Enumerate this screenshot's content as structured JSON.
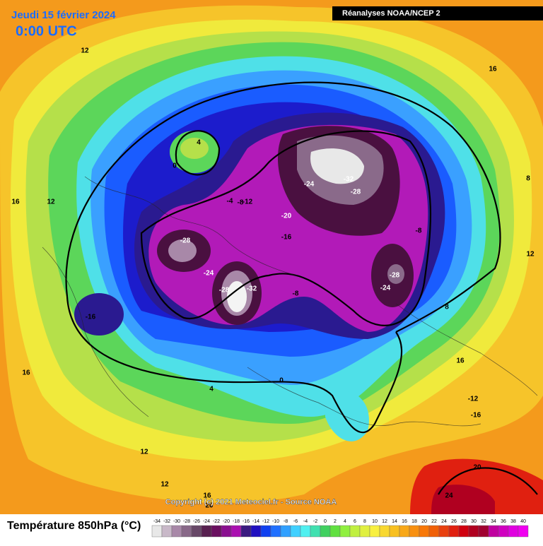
{
  "header": {
    "title": "Jeudi 15 février 2024",
    "time": "0:00 UTC",
    "source_box": "Réanalyses NOAA/NCEP 2"
  },
  "map": {
    "contour_labels": [
      12,
      16,
      4,
      0,
      16,
      12,
      -4,
      -8,
      -12,
      -24,
      -32,
      -28,
      -20,
      -16,
      -8,
      -28,
      -24,
      -28,
      -32,
      -8,
      -28,
      -24,
      8,
      12,
      8,
      -16,
      16,
      16,
      4,
      0,
      -12,
      -16,
      20,
      24,
      12,
      12,
      16,
      20
    ]
  },
  "footer": {
    "copyright": "Copyright (c) 2021 Meteociel.fr - Source NOAA",
    "variable": "Température 850hPa (°C)"
  },
  "legend": {
    "values": [
      -34,
      -32,
      -30,
      -28,
      -26,
      -24,
      -22,
      -20,
      -18,
      -16,
      -14,
      -12,
      -10,
      -8,
      -6,
      -4,
      -2,
      0,
      2,
      4,
      6,
      8,
      10,
      12,
      14,
      16,
      18,
      20,
      22,
      24,
      26,
      28,
      30,
      32,
      34,
      36,
      38,
      40
    ],
    "colors": [
      "#e8e8e8",
      "#c8b8c8",
      "#a888a8",
      "#886888",
      "#684868",
      "#582050",
      "#6a1060",
      "#8a1090",
      "#aa10b0",
      "#3a1a80",
      "#2010c0",
      "#1040f0",
      "#2070ff",
      "#30a0ff",
      "#40d0ff",
      "#50f0f0",
      "#40e0b0",
      "#40d060",
      "#60e040",
      "#90f040",
      "#c0f040",
      "#e0f040",
      "#f8f040",
      "#f8d830",
      "#f8c020",
      "#f8a818",
      "#f89010",
      "#f87808",
      "#f06008",
      "#e84010",
      "#e02010",
      "#d00010",
      "#b00020",
      "#a00030",
      "#c000a0",
      "#d000c0",
      "#e000e0",
      "#f000f0"
    ]
  }
}
